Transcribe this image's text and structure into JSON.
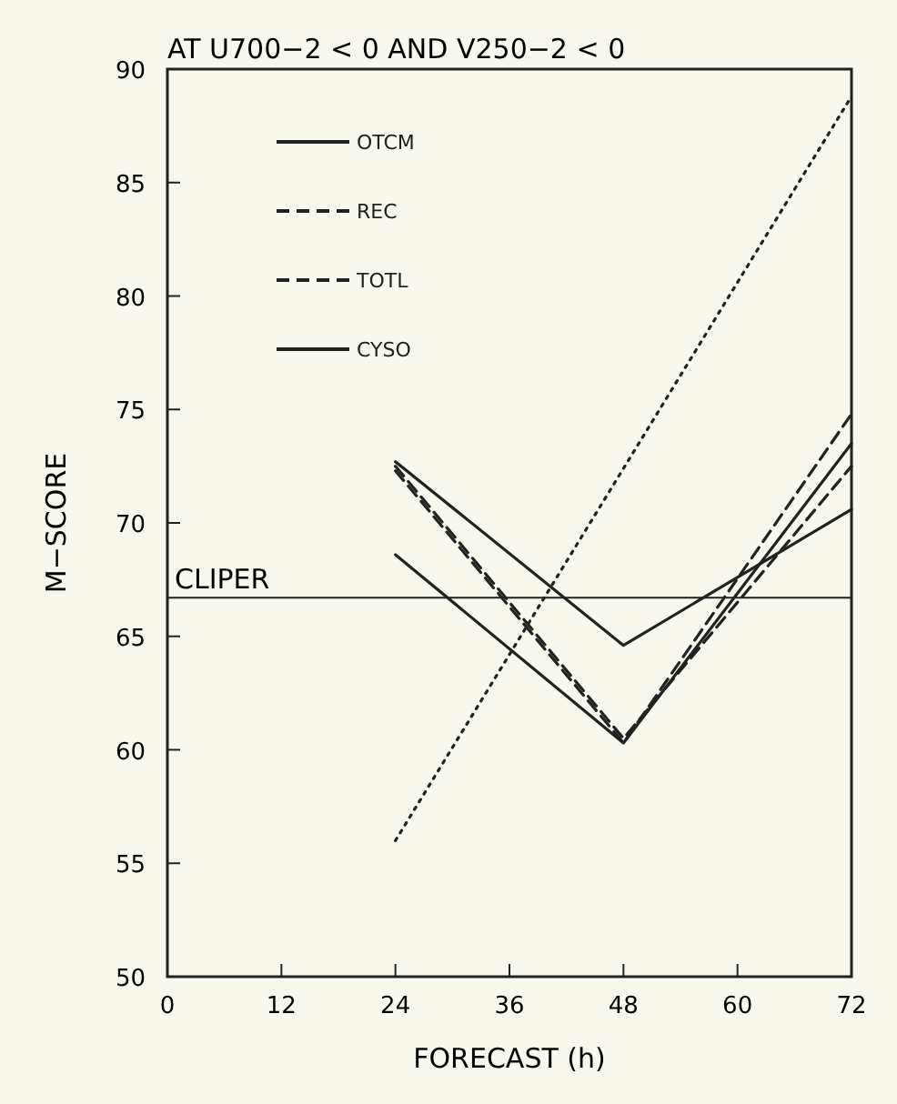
{
  "chart_data": {
    "type": "line",
    "title": "AT U700−2 < 0 AND V250−2 < 0",
    "xlabel": "FORECAST (h)",
    "ylabel": "M−SCORE",
    "x": [
      24,
      48,
      72
    ],
    "xlim": [
      0,
      72
    ],
    "xticks": [
      0,
      12,
      24,
      36,
      48,
      60,
      72
    ],
    "ylim": [
      50,
      90
    ],
    "yticks": [
      50,
      55,
      60,
      65,
      70,
      75,
      80,
      85,
      90
    ],
    "grid": false,
    "legend": "top left",
    "marker": "none",
    "series": [
      {
        "name": "OTCM",
        "color": "#222222",
        "line_style": "solid",
        "values": [
          72.7,
          64.6,
          70.6
        ]
      },
      {
        "name": "REC",
        "color": "#222222",
        "line_style": "dashed",
        "values": [
          72.5,
          60.5,
          72.5
        ]
      },
      {
        "name": "TOTL",
        "color": "#222222",
        "line_style": "dashed",
        "values": [
          72.3,
          60.3,
          74.8
        ]
      },
      {
        "name": "CYSO",
        "color": "#222222",
        "line_style": "solid",
        "values": [
          68.6,
          60.3,
          73.5
        ]
      },
      {
        "color": "#222222",
        "line_style": "dotted",
        "x": [
          24,
          72
        ],
        "values": [
          56,
          88.8
        ]
      }
    ],
    "ref_lines": [
      {
        "axis": "y",
        "value": 66.7,
        "label": "CLIPER",
        "color": "#222222"
      }
    ]
  }
}
